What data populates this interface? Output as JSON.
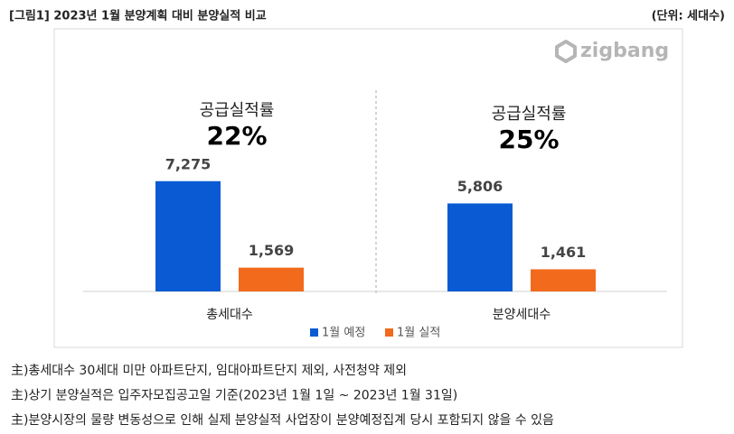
{
  "header": {
    "title": "[그림1] 2023년 1월 분양계획 대비 분양실적 비교",
    "unit": "(단위: 세대수)"
  },
  "chart_data": {
    "type": "bar",
    "logo": "zigbang",
    "categories": [
      "총세대수",
      "분양세대수"
    ],
    "series": [
      {
        "name": "1월 예정",
        "color": "#0a5bd3",
        "values": [
          7275,
          5806
        ],
        "value_labels": [
          "7,275",
          "5,806"
        ]
      },
      {
        "name": "1월 실적",
        "color": "#f26a1b",
        "values": [
          1569,
          1461
        ],
        "value_labels": [
          "1,569",
          "1,461"
        ]
      }
    ],
    "ylim": [
      0,
      10000
    ],
    "annotations": [
      {
        "label": "공급실적률",
        "value": "22%"
      },
      {
        "label": "공급실적률",
        "value": "25%"
      }
    ]
  },
  "notes": [
    "主)총세대수 30세대 미만 아파트단지, 임대아파트단지 제외, 사전청약 제외",
    "主)상기 분양실적은 입주자모집공고일 기준(2023년 1월 1일 ~ 2023년 1월 31일)",
    "主)분양시장의 물량 변동성으로 인해 실제 분양실적 사업장이 분양예정집계 당시 포함되지 않을 수 있음"
  ]
}
